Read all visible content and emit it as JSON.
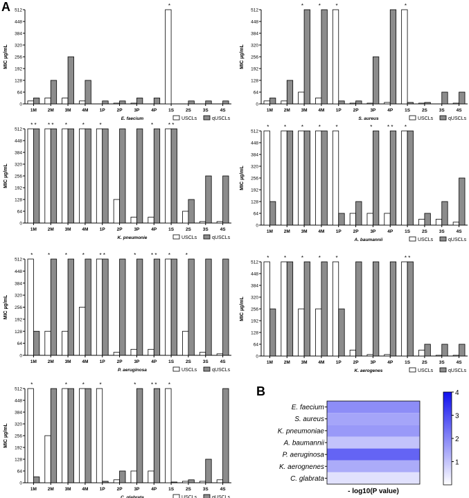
{
  "panel_labels": {
    "a": "A",
    "b": "B"
  },
  "chart_data": [
    {
      "type": "bar",
      "organism": "E. faecium",
      "categories": [
        "1M",
        "2M",
        "3M",
        "4M",
        "1P",
        "2P",
        "3P",
        "4P",
        "1S",
        "2S",
        "3S",
        "4S"
      ],
      "ylabel": "MIC µg/mL",
      "yticks": [
        0,
        64,
        128,
        192,
        256,
        320,
        384,
        448,
        512
      ],
      "ylim": [
        0,
        512
      ],
      "legend": [
        "USCLs",
        "qUSCLs"
      ],
      "series": [
        {
          "name": "USCLs",
          "values": [
            16,
            32,
            32,
            16,
            0,
            4,
            4,
            0,
            512,
            0,
            0,
            0
          ]
        },
        {
          "name": "qUSCLs",
          "values": [
            32,
            128,
            256,
            128,
            16,
            16,
            32,
            32,
            0,
            16,
            16,
            16
          ]
        }
      ],
      "stars": [
        "",
        "",
        "",
        "",
        "",
        "",
        "",
        "",
        "*",
        "",
        "",
        ""
      ]
    },
    {
      "type": "bar",
      "organism": "S. aureus",
      "categories": [
        "1M",
        "2M",
        "3M",
        "4M",
        "1P",
        "2P",
        "3P",
        "4P",
        "1S",
        "2S",
        "3S",
        "4S"
      ],
      "ylabel": "MIC µg/mL",
      "yticks": [
        0,
        64,
        128,
        192,
        256,
        320,
        384,
        448,
        512
      ],
      "ylim": [
        0,
        512
      ],
      "legend": [
        "USCLs",
        "qUSCLs"
      ],
      "series": [
        {
          "name": "USCLs",
          "values": [
            16,
            16,
            64,
            32,
            512,
            4,
            4,
            8,
            512,
            4,
            0,
            4
          ]
        },
        {
          "name": "qUSCLs",
          "values": [
            32,
            128,
            512,
            512,
            16,
            16,
            256,
            512,
            8,
            8,
            64,
            64
          ]
        }
      ],
      "stars": [
        "",
        "",
        "*",
        "*",
        "*",
        "",
        "",
        "",
        "*",
        "",
        "",
        ""
      ]
    },
    {
      "type": "bar",
      "organism": "K. pneumonie",
      "categories": [
        "1M",
        "2M",
        "3M",
        "4M",
        "1P",
        "2P",
        "3P",
        "4P",
        "1S",
        "2S",
        "3S",
        "4S"
      ],
      "ylabel": "MIC µg/mL",
      "yticks": [
        0,
        64,
        128,
        192,
        256,
        320,
        384,
        448,
        512
      ],
      "ylim": [
        0,
        512
      ],
      "legend": [
        "USCLs",
        "qUSCLs"
      ],
      "series": [
        {
          "name": "USCLs",
          "values": [
            512,
            512,
            512,
            512,
            512,
            128,
            32,
            32,
            512,
            64,
            8,
            8
          ]
        },
        {
          "name": "qUSCLs",
          "values": [
            512,
            512,
            512,
            512,
            512,
            512,
            512,
            512,
            512,
            128,
            256,
            256
          ]
        }
      ],
      "stars": [
        "* *",
        "* *",
        "*",
        "*",
        "*",
        "",
        "",
        "*",
        "* *",
        "",
        "",
        ""
      ]
    },
    {
      "type": "bar",
      "organism": "A. baumannii",
      "categories": [
        "1M",
        "2M",
        "3M",
        "4M",
        "1P",
        "2P",
        "3P",
        "4P",
        "1S",
        "2S",
        "3S",
        "4S"
      ],
      "ylabel": "MIC µg/mL",
      "yticks": [
        0,
        64,
        128,
        192,
        256,
        320,
        384,
        448,
        512
      ],
      "ylim": [
        0,
        512
      ],
      "legend": [
        "USCLs",
        "qUSCLs"
      ],
      "series": [
        {
          "name": "USCLs",
          "values": [
            512,
            512,
            512,
            512,
            512,
            64,
            64,
            64,
            512,
            32,
            32,
            16
          ]
        },
        {
          "name": "qUSCLs",
          "values": [
            128,
            512,
            512,
            512,
            64,
            128,
            512,
            512,
            512,
            64,
            128,
            256
          ]
        }
      ],
      "stars": [
        "*",
        "*",
        "*",
        "*",
        "*",
        "",
        "*",
        "* *",
        "*",
        "",
        "",
        ""
      ]
    },
    {
      "type": "bar",
      "organism": "P. aeruginosa",
      "categories": [
        "1M",
        "2M",
        "3M",
        "4M",
        "1P",
        "2P",
        "3P",
        "4P",
        "1S",
        "2S",
        "3S",
        "4S"
      ],
      "ylabel": "MIC µg/mL",
      "yticks": [
        0,
        64,
        128,
        192,
        256,
        320,
        384,
        448,
        512
      ],
      "ylim": [
        0,
        512
      ],
      "legend": [
        "USCLs",
        "qUSCLs"
      ],
      "series": [
        {
          "name": "USCLs",
          "values": [
            512,
            128,
            128,
            256,
            512,
            16,
            32,
            32,
            512,
            128,
            16,
            8
          ]
        },
        {
          "name": "qUSCLs",
          "values": [
            128,
            512,
            512,
            512,
            512,
            512,
            512,
            512,
            512,
            512,
            512,
            512
          ]
        }
      ],
      "stars": [
        "*",
        "*",
        "*",
        "*",
        "* *",
        "",
        "*",
        "* *",
        "*",
        "*",
        "",
        ""
      ]
    },
    {
      "type": "bar",
      "organism": "K. aerogenes",
      "categories": [
        "1M",
        "2M",
        "3M",
        "4M",
        "1P",
        "2P",
        "3P",
        "4P",
        "1S",
        "2S",
        "3S",
        "4S"
      ],
      "ylabel": "MIC µg/mL",
      "yticks": [
        0,
        64,
        128,
        192,
        256,
        320,
        384,
        448,
        512
      ],
      "ylim": [
        0,
        512
      ],
      "legend": [
        "USCLs",
        "qUSCLs"
      ],
      "series": [
        {
          "name": "USCLs",
          "values": [
            512,
            512,
            256,
            256,
            512,
            32,
            8,
            8,
            512,
            32,
            4,
            4
          ]
        },
        {
          "name": "qUSCLs",
          "values": [
            256,
            512,
            512,
            512,
            256,
            512,
            512,
            512,
            512,
            64,
            64,
            64
          ]
        }
      ],
      "stars": [
        "*",
        "*",
        "*",
        "*",
        "*",
        "",
        "",
        "",
        "* *",
        "",
        "",
        ""
      ]
    },
    {
      "type": "bar",
      "organism": "C. glabrata",
      "categories": [
        "1M",
        "2M",
        "3M",
        "4M",
        "1P",
        "2P",
        "3P",
        "4P",
        "1S",
        "2S",
        "3S",
        "4S"
      ],
      "ylabel": "MIC µg/mL",
      "yticks": [
        0,
        64,
        128,
        192,
        256,
        320,
        384,
        448,
        512
      ],
      "ylim": [
        0,
        512
      ],
      "legend": [
        "USCLs",
        "qUSCLs"
      ],
      "series": [
        {
          "name": "USCLs",
          "values": [
            512,
            256,
            512,
            512,
            512,
            16,
            64,
            64,
            512,
            8,
            8,
            16
          ]
        },
        {
          "name": "qUSCLs",
          "values": [
            32,
            512,
            512,
            512,
            8,
            64,
            512,
            512,
            4,
            16,
            128,
            512
          ]
        }
      ],
      "stars": [
        "*",
        "",
        "*",
        "*",
        "*",
        "",
        "*",
        "* *",
        "*",
        "",
        "",
        ""
      ]
    },
    {
      "type": "heatmap",
      "rows": [
        "E. faecium",
        "S. aureus",
        "K. pneumoniae",
        "A. baumannii",
        "P. aeruginosa",
        "K. aerognenes",
        "C. glabrata"
      ],
      "values": [
        1.9,
        1.5,
        1.7,
        1.0,
        2.6,
        1.4,
        0.5
      ],
      "xlabel": "- log10(P value)",
      "colorbar_ticks": [
        1,
        2,
        3,
        4
      ],
      "colorbar_range": [
        0,
        4
      ],
      "colors": {
        "low": "#ffffff",
        "high": "#1010ee"
      }
    }
  ]
}
